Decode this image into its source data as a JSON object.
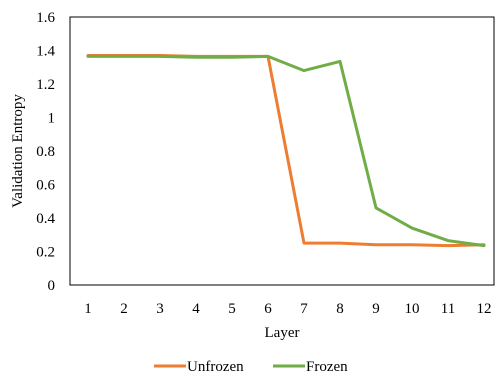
{
  "chart_data": {
    "type": "line",
    "title": "",
    "xlabel": "Layer",
    "ylabel": "Validation Entropy",
    "x": [
      1,
      2,
      3,
      4,
      5,
      6,
      7,
      8,
      9,
      10,
      11,
      12
    ],
    "xtick_labels": [
      "1",
      "2",
      "3",
      "4",
      "5",
      "6",
      "7",
      "8",
      "9",
      "10",
      "11",
      "12"
    ],
    "ylim": [
      0,
      1.6
    ],
    "ytick_labels": [
      "0",
      "0.2",
      "0.4",
      "0.6",
      "0.8",
      "1",
      "1.2",
      "1.4",
      "1.6"
    ],
    "grid": false,
    "legend_position": "bottom",
    "series": [
      {
        "name": "Unfrozen",
        "color": "#ED7D31",
        "values": [
          1.37,
          1.37,
          1.37,
          1.365,
          1.365,
          1.365,
          0.25,
          0.25,
          0.24,
          0.24,
          0.235,
          0.24
        ]
      },
      {
        "name": "Frozen",
        "color": "#70AD47",
        "values": [
          1.365,
          1.365,
          1.365,
          1.36,
          1.36,
          1.365,
          1.28,
          1.335,
          0.46,
          0.34,
          0.265,
          0.235
        ]
      }
    ]
  }
}
